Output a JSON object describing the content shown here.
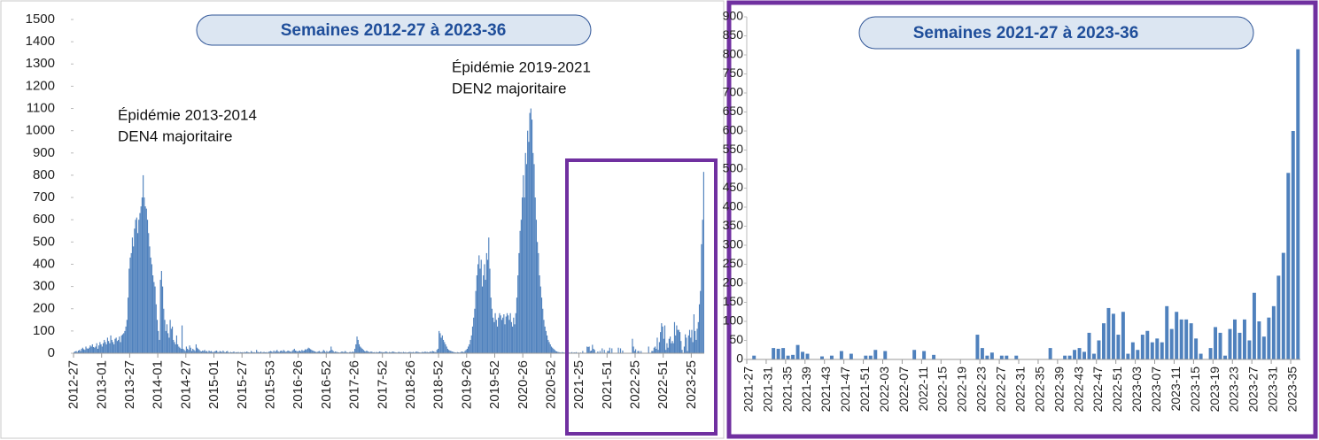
{
  "chart_data": [
    {
      "type": "bar",
      "title": "Semaines 2012-27 à 2023-36",
      "color": "#4f81bd",
      "annotations": [
        [
          "Épidémie 2013-2014",
          "DEN4 majoritaire"
        ],
        [
          "Épidémie 2019-2021",
          "DEN2 majoritaire"
        ]
      ],
      "ylim": [
        0,
        1500
      ],
      "yticks": [
        0,
        100,
        200,
        300,
        400,
        500,
        600,
        700,
        800,
        900,
        1000,
        1100,
        1200,
        1300,
        1400,
        1500
      ],
      "categories": [
        "2012-27",
        null,
        null,
        null,
        null,
        null,
        null,
        null,
        null,
        null,
        null,
        null,
        null,
        null,
        null,
        null,
        null,
        null,
        null,
        null,
        null,
        null,
        null,
        null,
        null,
        null,
        "2013-01",
        null,
        null,
        null,
        null,
        null,
        null,
        null,
        null,
        null,
        null,
        null,
        null,
        null,
        null,
        null,
        null,
        null,
        null,
        null,
        null,
        null,
        null,
        null,
        null,
        null,
        "2013-27",
        null,
        null,
        null,
        null,
        null,
        null,
        null,
        null,
        null,
        null,
        null,
        null,
        null,
        null,
        null,
        null,
        null,
        null,
        null,
        null,
        null,
        null,
        null,
        null,
        null,
        "2014-01",
        null,
        null,
        null,
        null,
        null,
        null,
        null,
        null,
        null,
        null,
        null,
        null,
        null,
        null,
        null,
        null,
        null,
        null,
        null,
        null,
        null,
        null,
        null,
        null,
        null,
        "2014-27",
        null,
        null,
        null,
        null,
        null,
        null,
        null,
        null,
        null,
        null,
        null,
        null,
        null,
        null,
        null,
        null,
        null,
        null,
        null,
        null,
        null,
        null,
        null,
        null,
        null,
        "2015-01",
        null,
        null,
        null,
        null,
        null,
        null,
        null,
        null,
        null,
        null,
        null,
        null,
        null,
        null,
        null,
        null,
        null,
        null,
        null,
        null,
        null,
        null,
        null,
        null,
        null,
        "2015-27",
        null,
        null,
        null,
        null,
        null,
        null,
        null,
        null,
        null,
        null,
        null,
        null,
        null,
        null,
        null,
        null,
        null,
        null,
        null,
        null,
        null,
        null,
        null,
        null,
        null,
        "2015-53",
        null,
        null,
        null,
        null,
        null,
        null,
        null,
        null,
        null,
        null,
        null,
        null,
        null,
        null,
        null,
        null,
        null,
        null,
        null,
        null,
        null,
        null,
        null,
        null,
        null,
        "2016-26",
        null,
        null,
        null,
        null,
        null,
        null,
        null,
        null,
        null,
        null,
        null,
        null,
        null,
        null,
        null,
        null,
        null,
        null,
        null,
        null,
        null,
        null,
        null,
        null,
        null,
        "2016-52",
        null,
        null,
        null,
        null,
        null,
        null,
        null,
        null,
        null,
        null,
        null,
        null,
        null,
        null,
        null,
        null,
        null,
        null,
        null,
        null,
        null,
        null,
        null,
        null,
        null,
        "2017-26",
        null,
        null,
        null,
        null,
        null,
        null,
        null,
        null,
        null,
        null,
        null,
        null,
        null,
        null,
        null,
        null,
        null,
        null,
        null,
        null,
        null,
        null,
        null,
        null,
        null,
        "2017-52",
        null,
        null,
        null,
        null,
        null,
        null,
        null,
        null,
        null,
        null,
        null,
        null,
        null,
        null,
        null,
        null,
        null,
        null,
        null,
        null,
        null,
        null,
        null,
        null,
        null,
        "2018-26",
        null,
        null,
        null,
        null,
        null,
        null,
        null,
        null,
        null,
        null,
        null,
        null,
        null,
        null,
        null,
        null,
        null,
        null,
        null,
        null,
        null,
        null,
        null,
        null,
        null,
        "2018-52",
        null,
        null,
        null,
        null,
        null,
        null,
        null,
        null,
        null,
        null,
        null,
        null,
        null,
        null,
        null,
        null,
        null,
        null,
        null,
        null,
        null,
        null,
        null,
        null,
        null,
        "2019-26",
        null,
        null,
        null,
        null,
        null,
        null,
        null,
        null,
        null,
        null,
        null,
        null,
        null,
        null,
        null,
        null,
        null,
        null,
        null,
        null,
        null,
        null,
        null,
        null,
        null,
        "2019-52",
        null,
        null,
        null,
        null,
        null,
        null,
        null,
        null,
        null,
        null,
        null,
        null,
        null,
        null,
        null,
        null,
        null,
        null,
        null,
        null,
        null,
        null,
        null,
        null,
        null,
        "2020-26",
        null,
        null,
        null,
        null,
        null,
        null,
        null,
        null,
        null,
        null,
        null,
        null,
        null,
        null,
        null,
        null,
        null,
        null,
        null,
        null,
        null,
        null,
        null,
        null,
        null,
        "2020-52",
        null,
        null,
        null,
        null,
        null,
        null,
        null,
        null,
        null,
        null,
        null,
        null,
        null,
        null,
        null,
        null,
        null,
        null,
        null,
        null,
        null,
        null,
        null,
        null,
        null,
        "2021-25",
        null,
        null,
        null,
        null,
        null,
        null,
        null,
        null,
        null,
        null,
        null,
        null,
        null,
        null,
        null,
        null,
        null,
        null,
        null,
        null,
        null,
        null,
        null,
        null,
        null,
        "2021-51",
        null,
        null,
        null,
        null,
        null,
        null,
        null,
        null,
        null,
        null,
        null,
        null,
        null,
        null,
        null,
        null,
        null,
        null,
        null,
        null,
        null,
        null,
        null,
        null,
        null,
        "2022-25",
        null,
        null,
        null,
        null,
        null,
        null,
        null,
        null,
        null,
        null,
        null,
        null,
        null,
        null,
        null,
        null,
        null,
        null,
        null,
        null,
        null,
        null,
        null,
        null,
        null,
        "2022-51",
        null,
        null,
        null,
        null,
        null,
        null,
        null,
        null,
        null,
        null,
        null,
        null,
        null,
        null,
        null,
        null,
        null,
        null,
        null,
        null,
        null,
        null,
        null,
        null,
        null,
        "2023-25",
        null,
        null,
        null,
        null,
        null,
        null,
        null,
        null,
        null,
        null,
        null
      ],
      "values": [
        5,
        8,
        10,
        6,
        12,
        15,
        10,
        20,
        25,
        18,
        15,
        30,
        22,
        20,
        25,
        35,
        30,
        40,
        28,
        25,
        30,
        45,
        20,
        35,
        50,
        40,
        30,
        45,
        60,
        50,
        40,
        70,
        55,
        45,
        80,
        60,
        50,
        40,
        65,
        70,
        55,
        60,
        75,
        50,
        80,
        85,
        90,
        100,
        120,
        150,
        250,
        380,
        430,
        450,
        520,
        480,
        560,
        600,
        610,
        540,
        600,
        630,
        660,
        700,
        800,
        700,
        660,
        650,
        600,
        540,
        480,
        430,
        400,
        350,
        320,
        300,
        220,
        150,
        100,
        60,
        330,
        370,
        300,
        200,
        150,
        100,
        130,
        90,
        70,
        150,
        110,
        120,
        60,
        50,
        40,
        80,
        40,
        30,
        25,
        20,
        125,
        20,
        15,
        10,
        30,
        20,
        15,
        35,
        25,
        10,
        20,
        15,
        10,
        40,
        25,
        20,
        15,
        10,
        8,
        12,
        10,
        15,
        8,
        10,
        5,
        12,
        8,
        10,
        6,
        5,
        8,
        10,
        12,
        6,
        5,
        10,
        8,
        5,
        12,
        6,
        4,
        8,
        10,
        5,
        3,
        6,
        4,
        5,
        8,
        3,
        5,
        4,
        6,
        3,
        5,
        4,
        5,
        3,
        6,
        4,
        8,
        5,
        4,
        3,
        10,
        6,
        4,
        5,
        3,
        15,
        6,
        5,
        4,
        8,
        3,
        5,
        6,
        4,
        5,
        3,
        6,
        8,
        10,
        8,
        5,
        12,
        6,
        10,
        15,
        8,
        6,
        10,
        12,
        8,
        15,
        10,
        6,
        8,
        12,
        10,
        8,
        6,
        10,
        15,
        20,
        12,
        10,
        8,
        10,
        12,
        8,
        15,
        10,
        12,
        18,
        15,
        20,
        25,
        22,
        18,
        15,
        12,
        10,
        8,
        6,
        5,
        8,
        10,
        6,
        5,
        8,
        15,
        10,
        5,
        10,
        5,
        8,
        12,
        30,
        15,
        10,
        5,
        8,
        6,
        5,
        4,
        3,
        5,
        8,
        6,
        5,
        10,
        6,
        4,
        3,
        5,
        6,
        4,
        8,
        5,
        20,
        40,
        75,
        60,
        40,
        30,
        25,
        20,
        15,
        10,
        8,
        12,
        8,
        6,
        5,
        8,
        6,
        4,
        5,
        3,
        6,
        4,
        5,
        8,
        6,
        5,
        5,
        4,
        6,
        8,
        5,
        3,
        6,
        4,
        5,
        8,
        6,
        5,
        4,
        3,
        5,
        6,
        4,
        5,
        3,
        6,
        4,
        5,
        3,
        4,
        5,
        6,
        5,
        4,
        6,
        3,
        5,
        8,
        6,
        5,
        4,
        3,
        5,
        6,
        4,
        8,
        5,
        6,
        4,
        5,
        8,
        6,
        10,
        8,
        6,
        5,
        15,
        20,
        100,
        90,
        70,
        80,
        60,
        50,
        40,
        30,
        20,
        15,
        12,
        10,
        8,
        6,
        5,
        4,
        3,
        5,
        4,
        3,
        5,
        8,
        6,
        5,
        10,
        15,
        20,
        30,
        40,
        60,
        80,
        120,
        160,
        200,
        280,
        350,
        400,
        440,
        380,
        420,
        300,
        350,
        400,
        330,
        450,
        420,
        520,
        380,
        250,
        200,
        160,
        140,
        180,
        150,
        120,
        160,
        180,
        170,
        150,
        160,
        175,
        130,
        165,
        180,
        170,
        150,
        180,
        140,
        120,
        160,
        130,
        180,
        250,
        350,
        450,
        550,
        600,
        700,
        800,
        700,
        900,
        850,
        1000,
        950,
        1080,
        1100,
        1050,
        900,
        850,
        700,
        600,
        500,
        450,
        350,
        300,
        250,
        200,
        150,
        120,
        100,
        80,
        60,
        50,
        40,
        30,
        25,
        20,
        15,
        10,
        8,
        6,
        5,
        4,
        3,
        5,
        4,
        3,
        2,
        5,
        3,
        4,
        2,
        3,
        5,
        2,
        4,
        3,
        5,
        2,
        3,
        2,
        3,
        0,
        10,
        0,
        0,
        0,
        30,
        28,
        30,
        10,
        12,
        38,
        20,
        15,
        0,
        0,
        8,
        0,
        10,
        0,
        22,
        0,
        15,
        0,
        0,
        10,
        10,
        25,
        0,
        22,
        0,
        0,
        0,
        0,
        0,
        25,
        0,
        22,
        0,
        12,
        0,
        0,
        0,
        0,
        0,
        0,
        0,
        0,
        65,
        30,
        10,
        18,
        0,
        10,
        10,
        0,
        10,
        0,
        0,
        0,
        0,
        0,
        0,
        30,
        0,
        0,
        10,
        10,
        25,
        30,
        20,
        70,
        15,
        50,
        95,
        135,
        120,
        65,
        125,
        15,
        45,
        25,
        65,
        75,
        45,
        55,
        45,
        140,
        80,
        125,
        105,
        105,
        95,
        55,
        15,
        0,
        30,
        85,
        70,
        10,
        80,
        105,
        70,
        105,
        50,
        175,
        100,
        60,
        110,
        140,
        220,
        280,
        490,
        600,
        815
      ]
    },
    {
      "type": "bar",
      "title": "Semaines 2021-27 à 2023-36",
      "color": "#4f81bd",
      "ylim": [
        0,
        900
      ],
      "yticks": [
        0,
        50,
        100,
        150,
        200,
        250,
        300,
        350,
        400,
        450,
        500,
        550,
        600,
        650,
        700,
        750,
        800,
        850,
        900
      ],
      "categories": [
        "2021-27",
        null,
        null,
        null,
        "2021-31",
        null,
        null,
        null,
        "2021-35",
        null,
        null,
        null,
        "2021-39",
        null,
        null,
        null,
        "2021-43",
        null,
        null,
        null,
        "2021-47",
        null,
        null,
        null,
        "2021-51",
        null,
        null,
        null,
        "2022-03",
        null,
        null,
        null,
        "2022-07",
        null,
        null,
        null,
        "2022-11",
        null,
        null,
        null,
        "2022-15",
        null,
        null,
        null,
        "2022-19",
        null,
        null,
        null,
        "2022-23",
        null,
        null,
        null,
        "2022-27",
        null,
        null,
        null,
        "2022-31",
        null,
        null,
        null,
        "2022-35",
        null,
        null,
        null,
        "2022-39",
        null,
        null,
        null,
        "2022-43",
        null,
        null,
        null,
        "2022-47",
        null,
        null,
        null,
        "2022-51",
        null,
        null,
        null,
        "2023-03",
        null,
        null,
        null,
        "2023-07",
        null,
        null,
        null,
        "2023-11",
        null,
        null,
        null,
        "2023-15",
        null,
        null,
        null,
        "2023-19",
        null,
        null,
        null,
        "2023-23",
        null,
        null,
        null,
        "2023-27",
        null,
        null,
        null,
        "2023-31",
        null,
        null,
        null,
        "2023-35",
        null
      ],
      "values": [
        0,
        10,
        0,
        0,
        0,
        30,
        28,
        30,
        10,
        12,
        38,
        20,
        15,
        0,
        0,
        8,
        0,
        10,
        0,
        22,
        0,
        15,
        0,
        0,
        10,
        10,
        25,
        0,
        22,
        0,
        0,
        0,
        0,
        0,
        25,
        0,
        22,
        0,
        12,
        0,
        0,
        0,
        0,
        0,
        0,
        0,
        0,
        65,
        30,
        10,
        18,
        0,
        10,
        10,
        0,
        10,
        0,
        0,
        0,
        0,
        0,
        0,
        30,
        0,
        0,
        10,
        10,
        25,
        30,
        20,
        70,
        15,
        50,
        95,
        135,
        120,
        65,
        125,
        15,
        45,
        25,
        65,
        75,
        45,
        55,
        45,
        140,
        80,
        125,
        105,
        105,
        95,
        55,
        15,
        0,
        30,
        85,
        70,
        10,
        80,
        105,
        70,
        105,
        50,
        175,
        100,
        60,
        110,
        140,
        220,
        280,
        490,
        600,
        815
      ]
    }
  ]
}
